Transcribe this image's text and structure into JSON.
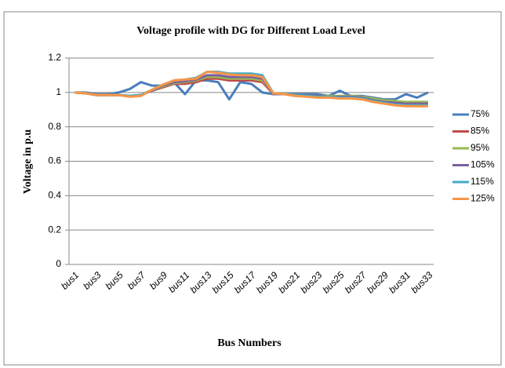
{
  "chart_data": {
    "type": "line",
    "title": "Voltage profile with DG for Different Load Level",
    "x_label": "Bus Numbers",
    "y_label": "Voltage in p.u",
    "categories": [
      "bus1",
      null,
      "bus3",
      null,
      "bus5",
      null,
      "bus7",
      null,
      "bus9",
      null,
      "bus11",
      null,
      "bus13",
      null,
      "bus15",
      null,
      "bus17",
      null,
      "bus19",
      null,
      "bus21",
      null,
      "bus23",
      null,
      "bus25",
      null,
      "bus27",
      null,
      "bus29",
      null,
      "bus31",
      null,
      "bus33"
    ],
    "ylim": [
      0,
      1.2
    ],
    "yticks": [
      0,
      0.2,
      0.4,
      0.6,
      0.8,
      1,
      1.2
    ],
    "grid": true,
    "legend": "right",
    "series": [
      {
        "name": "75%",
        "color": "#4a7ebb",
        "values": [
          1.0,
          1.0,
          0.99,
          0.99,
          1.0,
          1.02,
          1.06,
          1.04,
          1.04,
          1.06,
          0.99,
          1.07,
          1.07,
          1.06,
          0.96,
          1.06,
          1.05,
          1.0,
          0.99,
          0.99,
          0.99,
          0.99,
          0.99,
          0.98,
          1.01,
          0.98,
          0.98,
          0.97,
          0.96,
          0.96,
          0.99,
          0.97,
          1.0
        ]
      },
      {
        "name": "85%",
        "color": "#be4b48",
        "values": [
          1.0,
          0.995,
          0.985,
          0.985,
          0.985,
          0.98,
          0.985,
          1.01,
          1.03,
          1.05,
          1.05,
          1.06,
          1.08,
          1.08,
          1.07,
          1.07,
          1.07,
          1.06,
          0.99,
          0.99,
          0.98,
          0.98,
          0.98,
          0.975,
          0.975,
          0.975,
          0.97,
          0.96,
          0.95,
          0.945,
          0.94,
          0.94,
          0.94
        ]
      },
      {
        "name": "95%",
        "color": "#98b954",
        "values": [
          1.0,
          0.995,
          0.985,
          0.985,
          0.985,
          0.98,
          0.985,
          1.01,
          1.035,
          1.055,
          1.06,
          1.07,
          1.09,
          1.09,
          1.08,
          1.08,
          1.08,
          1.07,
          0.99,
          0.99,
          0.985,
          0.98,
          0.98,
          0.98,
          0.98,
          0.98,
          0.975,
          0.965,
          0.955,
          0.95,
          0.945,
          0.945,
          0.945
        ]
      },
      {
        "name": "105%",
        "color": "#7d60a0",
        "values": [
          1.0,
          0.995,
          0.985,
          0.985,
          0.985,
          0.98,
          0.985,
          1.01,
          1.04,
          1.06,
          1.065,
          1.075,
          1.1,
          1.1,
          1.09,
          1.09,
          1.09,
          1.08,
          0.99,
          0.99,
          0.985,
          0.98,
          0.98,
          0.975,
          0.975,
          0.975,
          0.97,
          0.955,
          0.945,
          0.94,
          0.935,
          0.935,
          0.935
        ]
      },
      {
        "name": "115%",
        "color": "#46aac5",
        "values": [
          1.0,
          0.995,
          0.985,
          0.985,
          0.985,
          0.98,
          0.985,
          1.015,
          1.045,
          1.07,
          1.075,
          1.085,
          1.12,
          1.12,
          1.11,
          1.11,
          1.11,
          1.1,
          0.995,
          0.99,
          0.985,
          0.98,
          0.975,
          0.975,
          0.97,
          0.97,
          0.965,
          0.95,
          0.94,
          0.93,
          0.925,
          0.925,
          0.925
        ]
      },
      {
        "name": "125%",
        "color": "#f79646",
        "values": [
          1.0,
          0.995,
          0.985,
          0.985,
          0.985,
          0.975,
          0.98,
          1.015,
          1.045,
          1.07,
          1.075,
          1.08,
          1.12,
          1.115,
          1.105,
          1.1,
          1.1,
          1.09,
          0.995,
          0.99,
          0.98,
          0.975,
          0.97,
          0.97,
          0.965,
          0.965,
          0.96,
          0.945,
          0.935,
          0.925,
          0.92,
          0.92,
          0.92
        ]
      }
    ]
  }
}
